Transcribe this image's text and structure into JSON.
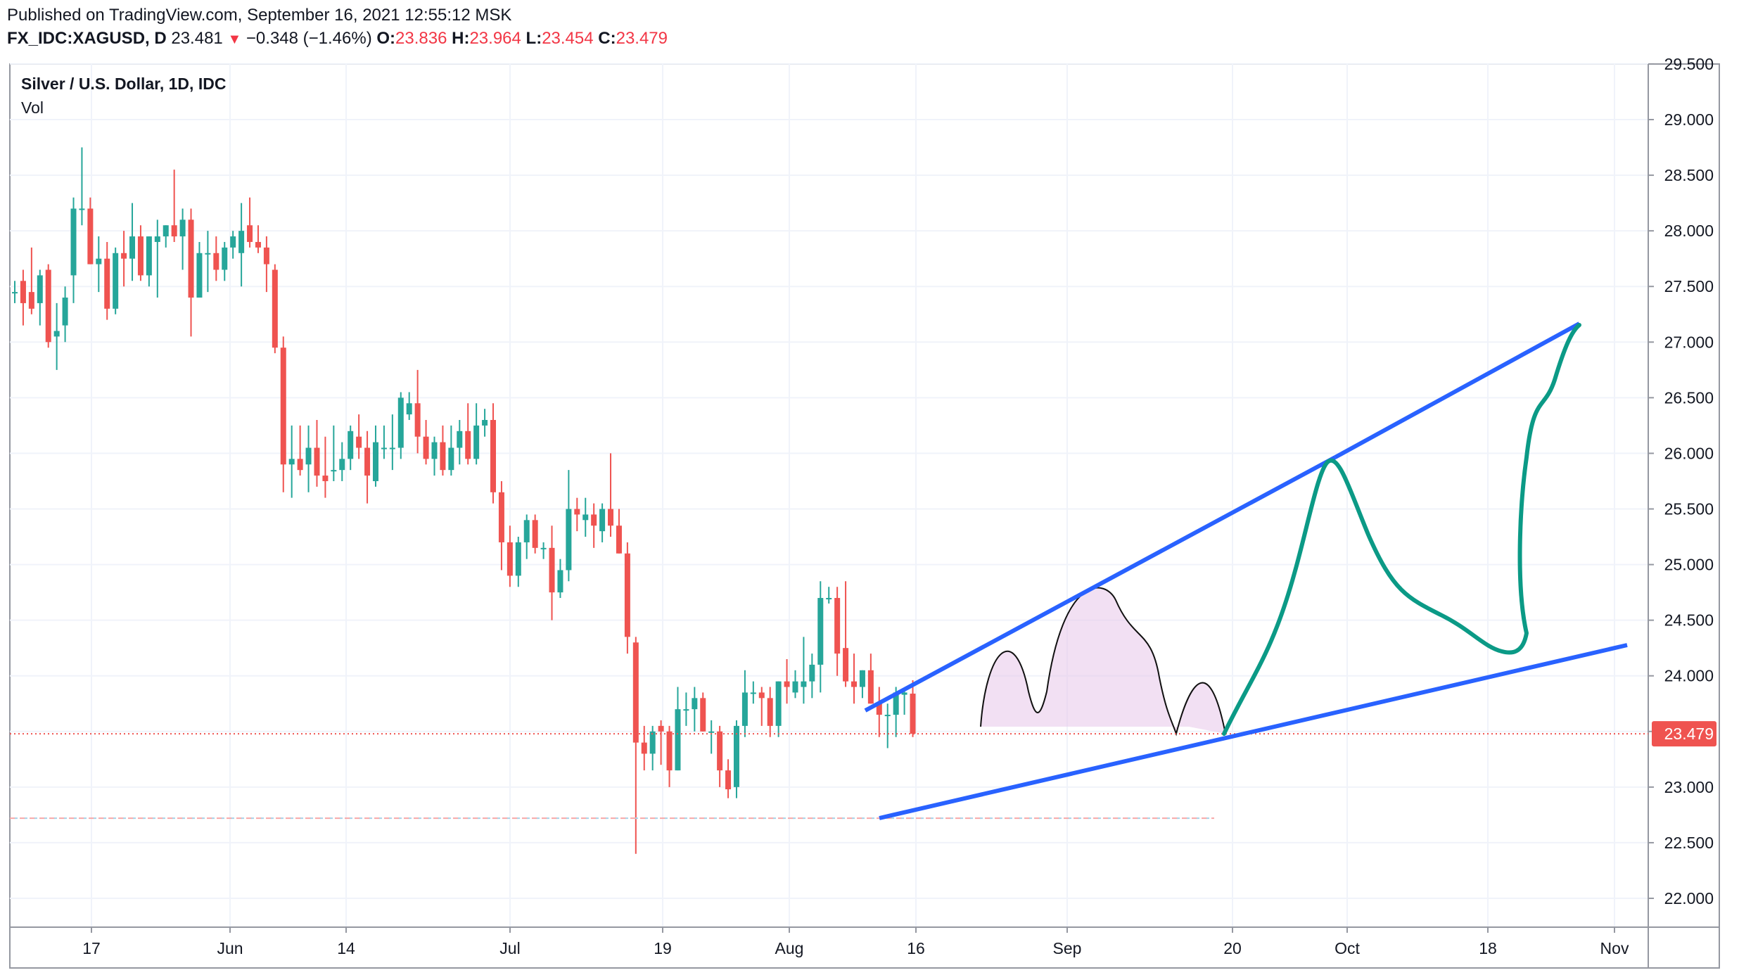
{
  "header": {
    "published": "Published on TradingView.com, September 16, 2021 12:55:12 MSK",
    "symbol": "FX_IDC:XAGUSD, D",
    "last": "23.481",
    "change_arrow": "▼",
    "change": "−0.348 (−1.46%)",
    "open_label": "O:",
    "open": "23.836",
    "high_label": "H:",
    "high": "23.964",
    "low_label": "L:",
    "low": "23.454",
    "close_label": "C:",
    "close": "23.479"
  },
  "legend": {
    "title": "Silver / U.S. Dollar, 1D, IDC",
    "vol": "Vol"
  },
  "colors": {
    "up": "#26a69a",
    "down": "#ef5350",
    "trendline": "#2962ff",
    "projection": "#0b9a86",
    "pattern_fill": "#e8c6ea",
    "price_tag": "#ef5350"
  },
  "chart_data": {
    "type": "candlestick",
    "y_axis": {
      "min": 21.85,
      "max": 29.55,
      "ticks": [
        "29.500",
        "29.000",
        "28.500",
        "28.000",
        "27.500",
        "27.000",
        "26.500",
        "26.000",
        "25.500",
        "25.000",
        "24.500",
        "24.000",
        "23.500",
        "23.000",
        "22.500",
        "22.000"
      ]
    },
    "x_axis": {
      "labels": [
        "17",
        "Jun",
        "14",
        "Jul",
        "19",
        "Aug",
        "16",
        "Sep",
        "20",
        "Oct",
        "18",
        "Nov"
      ]
    },
    "current_price": {
      "value": 23.479,
      "label": "23.479"
    },
    "reference_line": 22.72,
    "candles": [
      [
        27.45,
        27.55,
        27.35,
        27.45
      ],
      [
        27.55,
        27.65,
        27.15,
        27.35
      ],
      [
        27.45,
        27.85,
        27.25,
        27.3
      ],
      [
        27.35,
        27.65,
        27.15,
        27.6
      ],
      [
        27.65,
        27.7,
        26.95,
        27.0
      ],
      [
        27.05,
        27.35,
        26.75,
        27.1
      ],
      [
        27.15,
        27.5,
        27.0,
        27.4
      ],
      [
        27.6,
        28.3,
        27.35,
        28.2
      ],
      [
        28.2,
        28.75,
        28.05,
        28.2
      ],
      [
        28.2,
        28.3,
        27.7,
        27.7
      ],
      [
        27.7,
        27.95,
        27.45,
        27.75
      ],
      [
        27.75,
        27.9,
        27.2,
        27.3
      ],
      [
        27.3,
        27.85,
        27.25,
        27.8
      ],
      [
        27.8,
        28.0,
        27.5,
        27.75
      ],
      [
        27.75,
        28.25,
        27.55,
        27.95
      ],
      [
        27.95,
        28.05,
        27.55,
        27.6
      ],
      [
        27.6,
        27.95,
        27.5,
        27.95
      ],
      [
        27.9,
        28.1,
        27.4,
        27.95
      ],
      [
        27.95,
        28.05,
        27.85,
        28.05
      ],
      [
        28.05,
        28.55,
        27.9,
        27.95
      ],
      [
        27.95,
        28.2,
        27.65,
        28.1
      ],
      [
        28.1,
        28.2,
        27.05,
        27.4
      ],
      [
        27.4,
        27.9,
        27.4,
        27.8
      ],
      [
        27.8,
        28.0,
        27.45,
        27.8
      ],
      [
        27.8,
        27.95,
        27.55,
        27.65
      ],
      [
        27.65,
        27.9,
        27.55,
        27.85
      ],
      [
        27.85,
        28.0,
        27.75,
        27.95
      ],
      [
        27.8,
        28.25,
        27.5,
        28.0
      ],
      [
        28.05,
        28.3,
        27.85,
        27.9
      ],
      [
        27.9,
        28.05,
        27.8,
        27.85
      ],
      [
        27.85,
        27.95,
        27.45,
        27.7
      ],
      [
        27.65,
        27.7,
        26.9,
        26.95
      ],
      [
        26.95,
        27.05,
        25.65,
        25.9
      ],
      [
        25.9,
        26.25,
        25.6,
        25.95
      ],
      [
        25.95,
        26.25,
        25.8,
        25.85
      ],
      [
        25.9,
        26.25,
        25.65,
        26.05
      ],
      [
        26.05,
        26.3,
        25.7,
        25.8
      ],
      [
        25.8,
        26.15,
        25.6,
        25.75
      ],
      [
        25.85,
        26.25,
        25.75,
        25.85
      ],
      [
        25.85,
        26.1,
        25.75,
        25.95
      ],
      [
        25.95,
        26.25,
        25.85,
        26.2
      ],
      [
        26.15,
        26.35,
        25.95,
        26.05
      ],
      [
        26.05,
        26.2,
        25.55,
        25.8
      ],
      [
        25.75,
        26.25,
        25.7,
        26.1
      ],
      [
        26.05,
        26.25,
        25.95,
        26.05
      ],
      [
        26.05,
        26.35,
        25.85,
        26.05
      ],
      [
        26.05,
        26.55,
        25.95,
        26.5
      ],
      [
        26.35,
        26.55,
        26.3,
        26.45
      ],
      [
        26.45,
        26.75,
        26.0,
        26.15
      ],
      [
        26.15,
        26.3,
        25.9,
        25.95
      ],
      [
        25.95,
        26.15,
        25.8,
        26.1
      ],
      [
        26.1,
        26.25,
        25.8,
        25.85
      ],
      [
        25.85,
        26.25,
        25.8,
        26.05
      ],
      [
        26.05,
        26.3,
        25.9,
        26.2
      ],
      [
        26.2,
        26.45,
        25.9,
        25.95
      ],
      [
        25.95,
        26.45,
        25.9,
        26.25
      ],
      [
        26.25,
        26.4,
        26.15,
        26.3
      ],
      [
        26.3,
        26.45,
        25.55,
        25.65
      ],
      [
        25.65,
        25.75,
        24.95,
        25.2
      ],
      [
        25.2,
        25.35,
        24.8,
        24.9
      ],
      [
        24.9,
        25.25,
        24.8,
        25.2
      ],
      [
        25.2,
        25.45,
        25.05,
        25.4
      ],
      [
        25.4,
        25.45,
        25.1,
        25.15
      ],
      [
        25.15,
        25.2,
        25.05,
        25.15
      ],
      [
        25.15,
        25.35,
        24.5,
        24.75
      ],
      [
        24.75,
        25.05,
        24.7,
        24.95
      ],
      [
        24.95,
        25.85,
        24.85,
        25.5
      ],
      [
        25.5,
        25.6,
        25.3,
        25.45
      ],
      [
        25.4,
        25.6,
        25.25,
        25.45
      ],
      [
        25.45,
        25.55,
        25.15,
        25.35
      ],
      [
        25.3,
        25.55,
        25.2,
        25.5
      ],
      [
        25.5,
        26.0,
        25.25,
        25.35
      ],
      [
        25.35,
        25.5,
        25.1,
        25.1
      ],
      [
        25.1,
        25.2,
        24.2,
        24.35
      ],
      [
        24.3,
        24.35,
        22.4,
        23.4
      ],
      [
        23.4,
        23.55,
        23.15,
        23.3
      ],
      [
        23.3,
        23.55,
        23.15,
        23.5
      ],
      [
        23.55,
        23.6,
        23.2,
        23.5
      ],
      [
        23.5,
        23.55,
        23.0,
        23.15
      ],
      [
        23.15,
        23.9,
        23.15,
        23.7
      ],
      [
        23.7,
        23.85,
        23.55,
        23.7
      ],
      [
        23.7,
        23.9,
        23.5,
        23.8
      ],
      [
        23.8,
        23.85,
        23.5,
        23.5
      ],
      [
        23.5,
        23.6,
        23.3,
        23.5
      ],
      [
        23.5,
        23.55,
        23.0,
        23.15
      ],
      [
        23.15,
        23.25,
        22.9,
        22.98
      ],
      [
        23.0,
        23.6,
        22.9,
        23.55
      ],
      [
        23.55,
        24.05,
        23.45,
        23.85
      ],
      [
        23.85,
        23.95,
        23.75,
        23.85
      ],
      [
        23.85,
        23.9,
        23.55,
        23.8
      ],
      [
        23.8,
        23.9,
        23.45,
        23.55
      ],
      [
        23.55,
        23.95,
        23.45,
        23.95
      ],
      [
        23.95,
        24.15,
        23.75,
        23.9
      ],
      [
        23.85,
        24.05,
        23.8,
        23.95
      ],
      [
        23.9,
        24.35,
        23.75,
        23.95
      ],
      [
        23.95,
        24.2,
        23.8,
        24.1
      ],
      [
        24.1,
        24.85,
        23.85,
        24.7
      ],
      [
        24.7,
        24.8,
        24.65,
        24.7
      ],
      [
        24.7,
        24.8,
        24.0,
        24.2
      ],
      [
        24.25,
        24.85,
        23.9,
        23.95
      ],
      [
        23.95,
        24.2,
        23.75,
        23.9
      ],
      [
        23.9,
        24.05,
        23.8,
        24.05
      ],
      [
        24.05,
        24.2,
        23.75,
        23.75
      ],
      [
        23.75,
        23.9,
        23.45,
        23.65
      ],
      [
        23.65,
        23.75,
        23.35,
        23.65
      ],
      [
        23.65,
        23.9,
        23.45,
        23.85
      ],
      [
        23.83,
        23.88,
        23.65,
        23.85
      ],
      [
        23.84,
        23.96,
        23.45,
        23.48
      ]
    ]
  }
}
